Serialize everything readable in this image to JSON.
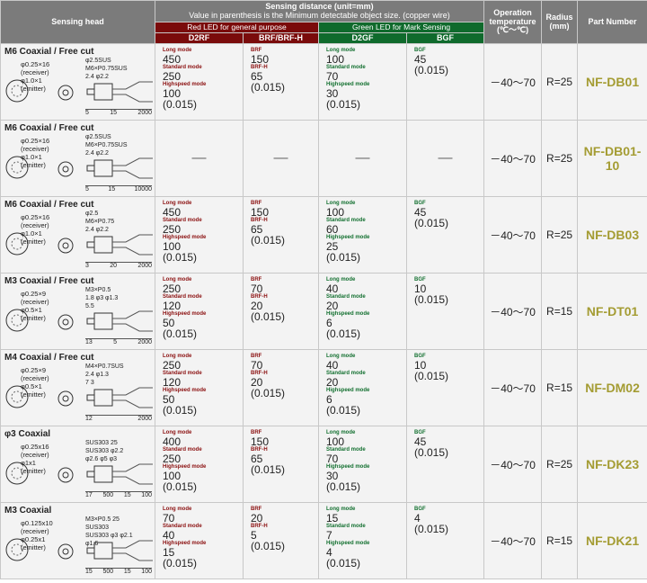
{
  "header": {
    "sensing_head": "Sensing head",
    "distance_title": "Sensing distance (unit=mm)",
    "distance_note": "Value in parenthesis is the Minimum detectable object size. (copper wire)",
    "red_group": "Red LED for general purpose",
    "green_group": "Green LED for Mark Sensing",
    "d2rf": "D2RF",
    "brf": "BRF/BRF-H",
    "d2gf": "D2GF",
    "bgf": "BGF",
    "temp": "Operation temperature (℃～℃)",
    "radius": "Radius (mm)",
    "part": "Part Number"
  },
  "colors": {
    "header": "#7b7b7b",
    "red": "#7a0b0b",
    "green": "#0f6a2c",
    "part": "#a49c33"
  },
  "rows": [
    {
      "head": {
        "title": "M6 Coaxial / Free cut",
        "fiber": [
          "φ0.25×16",
          "(receiver)",
          "φ1.0×1",
          "(emitter)"
        ],
        "top": [
          "φ2.5SUS",
          "M6×P0.75SUS",
          "2.4  φ2.2"
        ],
        "bottom": [
          "5",
          "15",
          "2000"
        ]
      },
      "d2rf": [
        {
          "m": "Long mode",
          "v": "450"
        },
        {
          "m": "Standard mode",
          "v": "250"
        },
        {
          "m": "Highspeed mode",
          "v": "100"
        }
      ],
      "d2rf_min": "(0.015)",
      "brf": [
        {
          "m": "BRF",
          "v": "150"
        },
        {
          "m": "BRF-H",
          "v": "65"
        }
      ],
      "brf_min": "(0.015)",
      "d2gf": [
        {
          "m": "Long mode",
          "v": "100"
        },
        {
          "m": "Standard mode",
          "v": "70"
        },
        {
          "m": "Highspeed mode",
          "v": "30"
        }
      ],
      "d2gf_min": "(0.015)",
      "bgf": [
        {
          "m": "BGF",
          "v": "45"
        }
      ],
      "bgf_min": "(0.015)",
      "temp": "－40～70",
      "radius": "R=25",
      "part": "NF-DB01"
    },
    {
      "head": {
        "title": "M6 Coaxial / Free cut",
        "fiber": [
          "φ0.25×16",
          "(receiver)",
          "φ1.0×1",
          "(emitter)"
        ],
        "top": [
          "φ2.5SUS",
          "M6×P0.75SUS",
          "2.4  φ2.2"
        ],
        "bottom": [
          "5",
          "15",
          "10000"
        ]
      },
      "dash": "—",
      "temp": "－40～70",
      "radius": "R=25",
      "part": "NF-DB01-10"
    },
    {
      "head": {
        "title": "M6 Coaxial / Free cut",
        "fiber": [
          "φ0.25×16",
          "(receiver)",
          "φ1.0×1",
          "(emitter)"
        ],
        "top": [
          "φ2.5",
          "M6×P0.75",
          "2.4  φ2.2"
        ],
        "bottom": [
          "3",
          "20",
          "2000"
        ]
      },
      "d2rf": [
        {
          "m": "Long mode",
          "v": "450"
        },
        {
          "m": "Standard mode",
          "v": "250"
        },
        {
          "m": "Highspeed mode",
          "v": "100"
        }
      ],
      "d2rf_min": "(0.015)",
      "brf": [
        {
          "m": "BRF",
          "v": "150"
        },
        {
          "m": "BRF-H",
          "v": "65"
        }
      ],
      "brf_min": "(0.015)",
      "d2gf": [
        {
          "m": "Long mode",
          "v": "100"
        },
        {
          "m": "Standard mode",
          "v": "60"
        },
        {
          "m": "Highspeed mode",
          "v": "25"
        }
      ],
      "d2gf_min": "(0.015)",
      "bgf": [
        {
          "m": "BGF",
          "v": "45"
        }
      ],
      "bgf_min": "(0.015)",
      "temp": "－40～70",
      "radius": "R=25",
      "part": "NF-DB03"
    },
    {
      "head": {
        "title": "M3 Coaxial / Free cut",
        "fiber": [
          "φ0.25×9",
          "(receiver)",
          "φ0.5×1",
          "(emitter)"
        ],
        "top": [
          "M3×P0.5",
          "1.8  φ3  φ1.3",
          "5.5"
        ],
        "bottom": [
          "13",
          "5",
          "2000"
        ]
      },
      "d2rf": [
        {
          "m": "Long mode",
          "v": "250"
        },
        {
          "m": "Standard mode",
          "v": "120"
        },
        {
          "m": "Highspeed mode",
          "v": "50"
        }
      ],
      "d2rf_min": "(0.015)",
      "brf": [
        {
          "m": "BRF",
          "v": "70"
        },
        {
          "m": "BRF-H",
          "v": "20"
        }
      ],
      "brf_min": "(0.015)",
      "d2gf": [
        {
          "m": "Long mode",
          "v": "40"
        },
        {
          "m": "Standard mode",
          "v": "20"
        },
        {
          "m": "Highspeed mode",
          "v": "6"
        }
      ],
      "d2gf_min": "(0.015)",
      "bgf": [
        {
          "m": "BGF",
          "v": "10"
        }
      ],
      "bgf_min": "(0.015)",
      "temp": "－40～70",
      "radius": "R=15",
      "part": "NF-DT01"
    },
    {
      "head": {
        "title": "M4 Coaxial / Free cut",
        "fiber": [
          "φ0.25×9",
          "(receiver)",
          "φ0.5×1",
          "(emitter)"
        ],
        "top": [
          "M4×P0.7SUS",
          "2.4  φ1.3",
          "7  3"
        ],
        "bottom": [
          "12",
          "2000"
        ]
      },
      "d2rf": [
        {
          "m": "Long mode",
          "v": "250"
        },
        {
          "m": "Standard mode",
          "v": "120"
        },
        {
          "m": "Highspeed mode",
          "v": "50"
        }
      ],
      "d2rf_min": "(0.015)",
      "brf": [
        {
          "m": "BRF",
          "v": "70"
        },
        {
          "m": "BRF-H",
          "v": "20"
        }
      ],
      "brf_min": "(0.015)",
      "d2gf": [
        {
          "m": "Long mode",
          "v": "40"
        },
        {
          "m": "Standard mode",
          "v": "20"
        },
        {
          "m": "Highspeed mode",
          "v": "6"
        }
      ],
      "d2gf_min": "(0.015)",
      "bgf": [
        {
          "m": "BGF",
          "v": "10"
        }
      ],
      "bgf_min": "(0.015)",
      "temp": "－40～70",
      "radius": "R=15",
      "part": "NF-DM02"
    },
    {
      "head": {
        "title": "φ3 Coaxial",
        "fiber": [
          "φ0.25x16",
          "(receiver)",
          "φ1x1",
          "(emitter)"
        ],
        "top": [
          "SUS303  25",
          "SUS303  φ2.2",
          "φ2.6  φ5  φ3"
        ],
        "bottom": [
          "17",
          "500",
          "15",
          "100"
        ]
      },
      "d2rf": [
        {
          "m": "Long mode",
          "v": "400"
        },
        {
          "m": "Standard mode",
          "v": "250"
        },
        {
          "m": "Highspeed mode",
          "v": "100"
        }
      ],
      "d2rf_min": "(0.015)",
      "brf": [
        {
          "m": "BRF",
          "v": "150"
        },
        {
          "m": "BRF-H",
          "v": "65"
        }
      ],
      "brf_min": "(0.015)",
      "d2gf": [
        {
          "m": "Long mode",
          "v": "100"
        },
        {
          "m": "Standard mode",
          "v": "70"
        },
        {
          "m": "Highspeed mode",
          "v": "30"
        }
      ],
      "d2gf_min": "(0.015)",
      "bgf": [
        {
          "m": "BGF",
          "v": "45"
        }
      ],
      "bgf_min": "(0.015)",
      "temp": "－40～70",
      "radius": "R=25",
      "part": "NF-DK23"
    },
    {
      "head": {
        "title": "M3 Coaxial",
        "fiber": [
          "φ0.125x10",
          "(receiver)",
          "φ0.25x1",
          "(emitter)"
        ],
        "top": [
          "M3×P0.5  25",
          "SUS303",
          "SUS303 φ3 φ2.1",
          "φ1.6"
        ],
        "bottom": [
          "15",
          "500",
          "15",
          "100"
        ]
      },
      "d2rf": [
        {
          "m": "Long mode",
          "v": "70"
        },
        {
          "m": "Standard mode",
          "v": "40"
        },
        {
          "m": "Highspeed mode",
          "v": "15"
        }
      ],
      "d2rf_min": "(0.015)",
      "brf": [
        {
          "m": "BRF",
          "v": "20"
        },
        {
          "m": "BRF-H",
          "v": "5"
        }
      ],
      "brf_min": "(0.015)",
      "d2gf": [
        {
          "m": "Long mode",
          "v": "15"
        },
        {
          "m": "Standard mode",
          "v": "7"
        },
        {
          "m": "Highspeed mode",
          "v": "4"
        }
      ],
      "d2gf_min": "(0.015)",
      "bgf": [
        {
          "m": "BGF",
          "v": "4"
        }
      ],
      "bgf_min": "(0.015)",
      "temp": "－40～70",
      "radius": "R=15",
      "part": "NF-DK21"
    }
  ]
}
